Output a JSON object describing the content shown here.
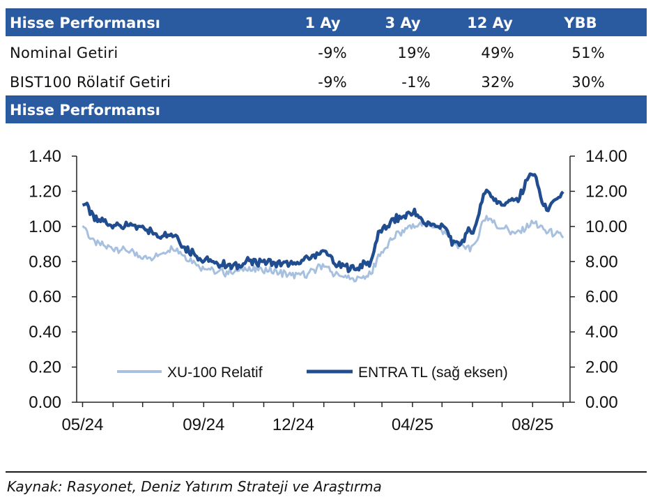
{
  "table": {
    "header": {
      "title": "Hisse Performansı",
      "col1": "1 Ay",
      "col2": "3 Ay",
      "col3": "12 Ay",
      "col4": "YBB"
    },
    "rows": [
      {
        "label": "Nominal Getiri",
        "v1": "-9%",
        "v2": "19%",
        "v3": "49%",
        "v4": "51%"
      },
      {
        "label": "BIST100 Rölatif Getiri",
        "v1": "-9%",
        "v2": "-1%",
        "v3": "32%",
        "v4": "30%"
      }
    ]
  },
  "chart_title_bar": "Hisse Performansı",
  "source": "Kaynak: Rasyonet, Deniz Yatırım Strateji ve Araştırma",
  "colors": {
    "header_bg": "#2a5aa0",
    "relative_line": "#a7c0e0",
    "price_line": "#1f4d8f"
  },
  "chart_data": {
    "type": "line",
    "x_tick_labels": [
      "05/24",
      "09/24",
      "12/24",
      "04/25",
      "08/25"
    ],
    "left_axis": {
      "ylim": [
        0,
        1.4
      ],
      "ticks": [
        "0.00",
        "0.20",
        "0.40",
        "0.60",
        "0.80",
        "1.00",
        "1.20",
        "1.40"
      ]
    },
    "right_axis": {
      "ylim": [
        0,
        14
      ],
      "ticks": [
        "0.00",
        "2.00",
        "4.00",
        "6.00",
        "8.00",
        "10.00",
        "12.00",
        "14.00"
      ]
    },
    "legend_placement": "bottom",
    "grid": false,
    "series": [
      {
        "name": "XU-100 Relatif",
        "axis": "left",
        "x": [
          "2024-05-01",
          "2024-05-15",
          "2024-06-01",
          "2024-06-15",
          "2024-07-01",
          "2024-07-15",
          "2024-08-01",
          "2024-08-15",
          "2024-09-01",
          "2024-09-15",
          "2024-10-01",
          "2024-10-15",
          "2024-11-01",
          "2024-11-15",
          "2024-12-01",
          "2024-12-15",
          "2025-01-01",
          "2025-01-15",
          "2025-02-01",
          "2025-02-15",
          "2025-03-01",
          "2025-03-15",
          "2025-04-01",
          "2025-04-15",
          "2025-05-01",
          "2025-05-15",
          "2025-06-01",
          "2025-06-15",
          "2025-07-01",
          "2025-07-15",
          "2025-08-01",
          "2025-08-15",
          "2025-09-01"
        ],
        "values": [
          1.0,
          0.9,
          0.88,
          0.86,
          0.82,
          0.83,
          0.88,
          0.82,
          0.77,
          0.74,
          0.74,
          0.76,
          0.75,
          0.74,
          0.72,
          0.73,
          0.78,
          0.72,
          0.7,
          0.72,
          0.85,
          0.95,
          1.0,
          1.02,
          0.98,
          0.9,
          0.88,
          1.05,
          0.99,
          0.96,
          1.02,
          0.97,
          0.94
        ]
      },
      {
        "name": "ENTRA TL (sağ eksen)",
        "axis": "right",
        "x": [
          "2024-05-01",
          "2024-05-15",
          "2024-06-01",
          "2024-06-15",
          "2024-07-01",
          "2024-07-15",
          "2024-08-01",
          "2024-08-15",
          "2024-09-01",
          "2024-09-15",
          "2024-10-01",
          "2024-10-15",
          "2024-11-01",
          "2024-11-15",
          "2024-12-01",
          "2024-12-15",
          "2025-01-01",
          "2025-01-15",
          "2025-02-01",
          "2025-02-15",
          "2025-03-01",
          "2025-03-15",
          "2025-04-01",
          "2025-04-15",
          "2025-05-01",
          "2025-05-15",
          "2025-06-01",
          "2025-06-15",
          "2025-07-01",
          "2025-07-15",
          "2025-08-01",
          "2025-08-15",
          "2025-09-01"
        ],
        "values": [
          11.4,
          10.4,
          10.1,
          10.0,
          10.0,
          9.5,
          9.6,
          8.7,
          8.1,
          7.9,
          7.7,
          8.0,
          8.0,
          7.9,
          7.8,
          8.2,
          8.6,
          7.8,
          7.6,
          7.9,
          9.8,
          10.4,
          10.8,
          10.2,
          10.0,
          9.0,
          9.8,
          12.0,
          11.3,
          11.5,
          13.0,
          11.0,
          11.8
        ]
      }
    ]
  }
}
